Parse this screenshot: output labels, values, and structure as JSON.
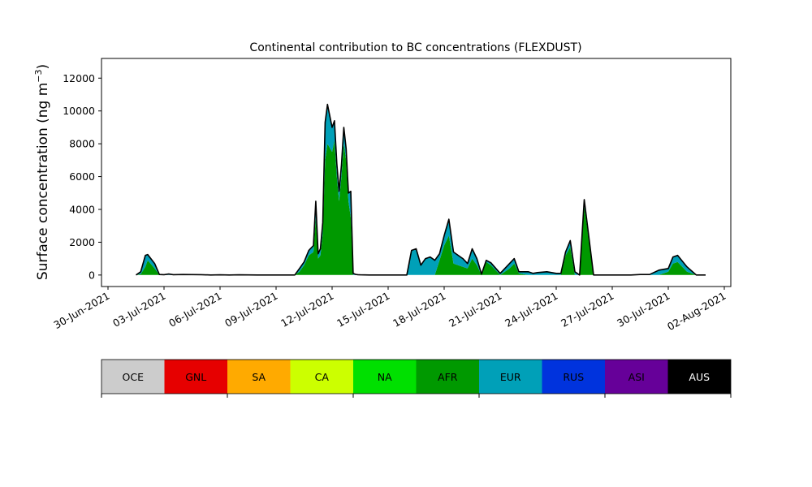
{
  "chart_data": {
    "type": "area",
    "stacked": true,
    "title": "Continental contribution to BC concentrations (FLEXDUST)",
    "ylabel": "Surface concentration (ng m",
    "ylabel_sup": "−3",
    "ylabel_close": ")",
    "xlabel": "",
    "xlim": [
      "2021-06-30",
      "2021-08-02"
    ],
    "ylim": [
      -700,
      13200
    ],
    "y_ticks": [
      0,
      2000,
      4000,
      6000,
      8000,
      10000,
      12000
    ],
    "x_ticks": [
      "30-Jun-2021",
      "03-Jul-2021",
      "06-Jul-2021",
      "09-Jul-2021",
      "12-Jul-2021",
      "15-Jul-2021",
      "18-Jul-2021",
      "21-Jul-2021",
      "24-Jul-2021",
      "27-Jul-2021",
      "30-Jul-2021",
      "02-Aug-2021"
    ],
    "grid": false,
    "legend": {
      "placement": "bottom colorbar",
      "entries": [
        {
          "name": "OCE",
          "color": "#cccccc"
        },
        {
          "name": "GNL",
          "color": "#e60000"
        },
        {
          "name": "SA",
          "color": "#ffaa00"
        },
        {
          "name": "CA",
          "color": "#ccff00"
        },
        {
          "name": "NA",
          "color": "#00e000"
        },
        {
          "name": "AFR",
          "color": "#009900"
        },
        {
          "name": "EUR",
          "color": "#00a0b8"
        },
        {
          "name": "RUS",
          "color": "#0033dd"
        },
        {
          "name": "ASI",
          "color": "#660099"
        },
        {
          "name": "AUS",
          "color": "#000000"
        }
      ]
    },
    "series_stack_order": [
      "AFR",
      "EUR",
      "ASI"
    ],
    "total_line_color": "#000000",
    "x": [
      "2021-07-01T12:00",
      "2021-07-01T18:00",
      "2021-07-02T00:00",
      "2021-07-02T03:00",
      "2021-07-02T12:00",
      "2021-07-02T18:00",
      "2021-07-03T00:00",
      "2021-07-03T06:00",
      "2021-07-03T12:00",
      "2021-07-04T00:00",
      "2021-07-05T00:00",
      "2021-07-05T12:00",
      "2021-07-06T00:00",
      "2021-07-06T12:00",
      "2021-07-07T00:00",
      "2021-07-08T00:00",
      "2021-07-08T12:00",
      "2021-07-09T00:00",
      "2021-07-10T00:00",
      "2021-07-10T06:00",
      "2021-07-10T12:00",
      "2021-07-10T18:00",
      "2021-07-11T00:00",
      "2021-07-11T03:00",
      "2021-07-11T06:00",
      "2021-07-11T09:00",
      "2021-07-11T12:00",
      "2021-07-11T15:00",
      "2021-07-11T18:00",
      "2021-07-12T00:00",
      "2021-07-12T03:00",
      "2021-07-12T06:00",
      "2021-07-12T09:00",
      "2021-07-12T12:00",
      "2021-07-12T15:00",
      "2021-07-12T18:00",
      "2021-07-12T21:00",
      "2021-07-13T00:00",
      "2021-07-13T03:00",
      "2021-07-13T06:00",
      "2021-07-13T09:00",
      "2021-07-13T12:00",
      "2021-07-14T00:00",
      "2021-07-14T12:00",
      "2021-07-15T00:00",
      "2021-07-15T12:00",
      "2021-07-16T00:00",
      "2021-07-16T06:00",
      "2021-07-16T12:00",
      "2021-07-16T18:00",
      "2021-07-17T00:00",
      "2021-07-17T06:00",
      "2021-07-17T12:00",
      "2021-07-17T18:00",
      "2021-07-18T00:00",
      "2021-07-18T06:00",
      "2021-07-18T12:00",
      "2021-07-18T18:00",
      "2021-07-19T00:00",
      "2021-07-19T06:00",
      "2021-07-19T12:00",
      "2021-07-19T18:00",
      "2021-07-20T00:00",
      "2021-07-20T06:00",
      "2021-07-20T12:00",
      "2021-07-21T00:00",
      "2021-07-21T12:00",
      "2021-07-21T18:00",
      "2021-07-22T00:00",
      "2021-07-22T12:00",
      "2021-07-22T18:00",
      "2021-07-23T00:00",
      "2021-07-23T12:00",
      "2021-07-23T18:00",
      "2021-07-24T00:00",
      "2021-07-24T06:00",
      "2021-07-24T12:00",
      "2021-07-24T18:00",
      "2021-07-25T00:00",
      "2021-07-25T06:00",
      "2021-07-25T12:00",
      "2021-07-26T00:00",
      "2021-07-27T00:00",
      "2021-07-28T00:00",
      "2021-07-28T12:00",
      "2021-07-29T00:00",
      "2021-07-29T12:00",
      "2021-07-30T00:00",
      "2021-07-30T06:00",
      "2021-07-30T12:00",
      "2021-07-31T00:00",
      "2021-07-31T12:00",
      "2021-08-01T00:00"
    ],
    "series": [
      {
        "name": "AFR",
        "values": [
          0,
          50,
          500,
          900,
          400,
          0,
          0,
          0,
          0,
          0,
          0,
          0,
          0,
          0,
          0,
          0,
          0,
          0,
          0,
          200,
          600,
          1200,
          1400,
          3500,
          1000,
          1200,
          2500,
          7000,
          8000,
          7500,
          8200,
          6000,
          4500,
          6000,
          8000,
          7000,
          4500,
          3500,
          0,
          0,
          0,
          0,
          0,
          0,
          0,
          0,
          0,
          0,
          0,
          0,
          0,
          0,
          0,
          900,
          1800,
          2400,
          700,
          600,
          500,
          400,
          1000,
          600,
          0,
          800,
          600,
          0,
          400,
          700,
          100,
          0,
          0,
          0,
          0,
          0,
          0,
          0,
          1200,
          1700,
          0,
          0,
          4200,
          0,
          0,
          0,
          0,
          0,
          0,
          200,
          700,
          800,
          200,
          0,
          0
        ]
      },
      {
        "name": "EUR",
        "values": [
          0,
          150,
          700,
          350,
          300,
          30,
          20,
          60,
          20,
          30,
          20,
          0,
          10,
          0,
          10,
          0,
          0,
          0,
          0,
          200,
          200,
          300,
          400,
          1000,
          300,
          400,
          700,
          2000,
          2400,
          1500,
          1200,
          800,
          600,
          700,
          1000,
          700,
          500,
          1600,
          100,
          40,
          20,
          10,
          0,
          0,
          0,
          0,
          0,
          1500,
          1600,
          600,
          1000,
          1100,
          900,
          400,
          600,
          1000,
          700,
          600,
          500,
          300,
          600,
          400,
          50,
          100,
          150,
          100,
          300,
          300,
          100,
          200,
          100,
          150,
          200,
          150,
          100,
          100,
          200,
          400,
          200,
          0,
          400,
          0,
          0,
          0,
          30,
          30,
          300,
          200,
          400,
          400,
          300,
          0,
          0
        ]
      },
      {
        "name": "ASI",
        "values": [
          0,
          0,
          0,
          0,
          0,
          0,
          0,
          0,
          0,
          0,
          0,
          0,
          0,
          0,
          0,
          0,
          0,
          0,
          0,
          0,
          0,
          0,
          0,
          0,
          0,
          0,
          0,
          300,
          0,
          0,
          0,
          0,
          0,
          0,
          0,
          0,
          0,
          0,
          0,
          0,
          0,
          0,
          0,
          0,
          0,
          0,
          0,
          0,
          0,
          0,
          0,
          0,
          0,
          0,
          0,
          0,
          0,
          0,
          0,
          0,
          0,
          0,
          0,
          0,
          0,
          0,
          0,
          0,
          0,
          0,
          0,
          0,
          0,
          0,
          0,
          0,
          0,
          0,
          0,
          0,
          0,
          0,
          0,
          0,
          0,
          0,
          0,
          0,
          0,
          0,
          0,
          0,
          0
        ]
      }
    ]
  }
}
